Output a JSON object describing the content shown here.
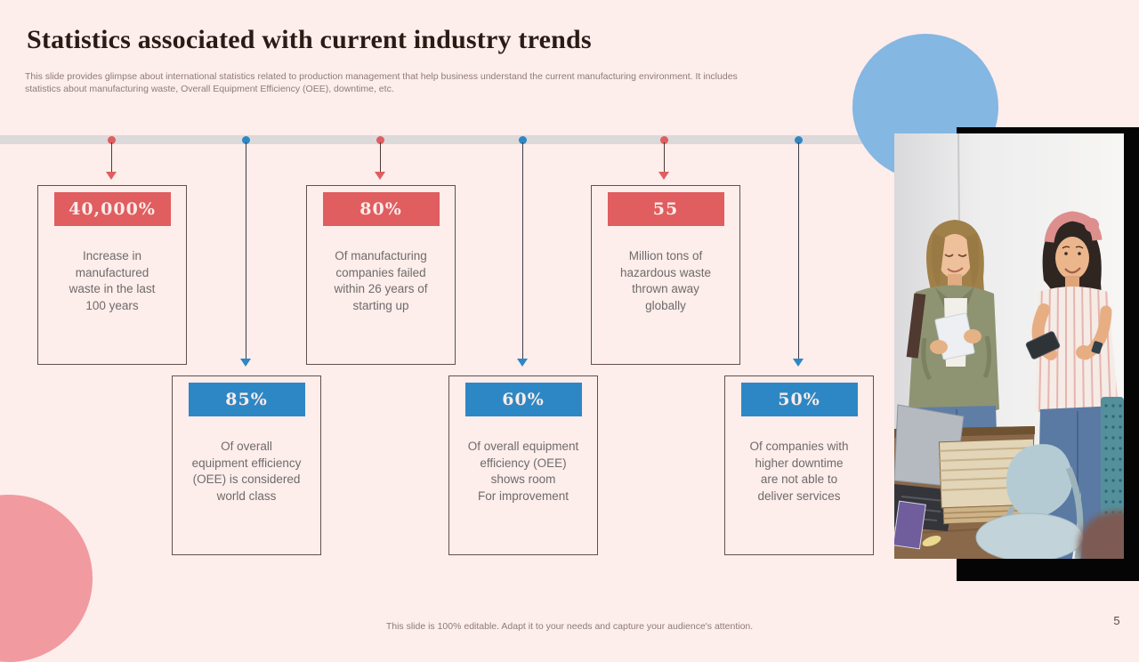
{
  "slide": {
    "title": "Statistics associated with current industry trends",
    "subtitle_line1": "This slide provides glimpse about international statistics related to production management that help business understand the current manufacturing environment. It includes",
    "subtitle_line2": "statistics about manufacturing waste, Overall Equipment Efficiency (OEE),  downtime, etc.",
    "footer": "This slide is 100% editable.  Adapt it to your needs and capture your audience's attention.",
    "page_number": "5"
  },
  "colors": {
    "background": "#fdedeb",
    "accent_red": "#e05d60",
    "accent_blue": "#2e87c5",
    "timeline_gray": "#dbd9d9",
    "decor_circle_blue": "#84b7e2",
    "decor_circle_pink": "#f19aa0",
    "connector_line_red_column": "#4c3b39",
    "connector_line_blue_column": "#3e3c4a",
    "box_border": "#64504a",
    "body_text": "#6f6b6b"
  },
  "stats": [
    {
      "value": "40,000%",
      "accent": "red",
      "description": "Increase in\nmanufactured\nwaste in the last\n100 years"
    },
    {
      "value": "80%",
      "accent": "red",
      "description": "Of manufacturing\ncompanies failed\nwithin 26 years of\nstarting up"
    },
    {
      "value": "55",
      "accent": "red",
      "description": "Million tons of\nhazardous waste\nthrown away\nglobally"
    },
    {
      "value": "85%",
      "accent": "blue",
      "description": "Of overall\nequipment efficiency\n(OEE) is considered\nworld class"
    },
    {
      "value": "60%",
      "accent": "blue",
      "description": "Of overall equipment\nefficiency (OEE)\nshows room\nFor improvement"
    },
    {
      "value": "50%",
      "accent": "blue",
      "description": "Of companies with\nhigher downtime\nare not able to\ndeliver services"
    }
  ]
}
